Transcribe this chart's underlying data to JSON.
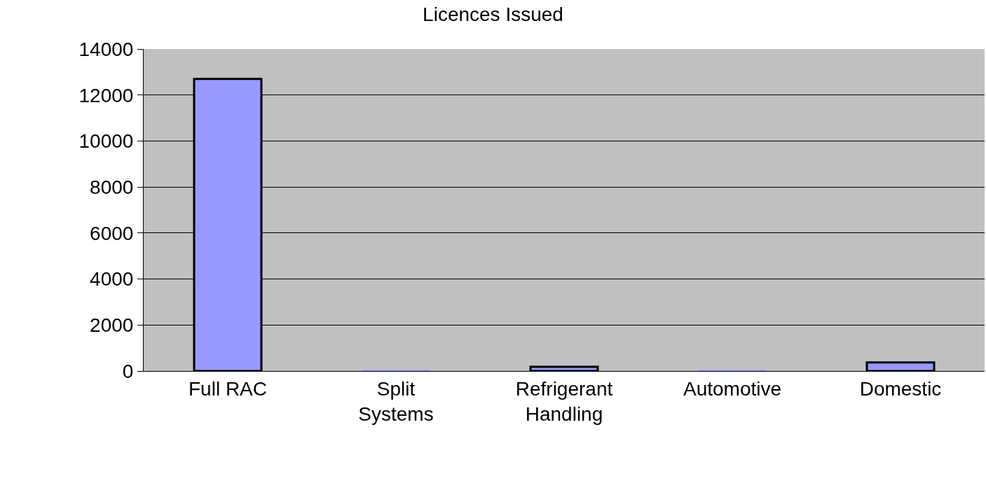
{
  "chart_data": {
    "type": "bar",
    "title": "Licences Issued",
    "categories": [
      "Full RAC",
      "Split Systems",
      "Refrigerant Handling",
      "Automotive",
      "Domestic"
    ],
    "values": [
      12700,
      0,
      180,
      0,
      370
    ],
    "color": "#9999ff",
    "ylim": [
      0,
      14000
    ],
    "yticks": [
      0,
      2000,
      4000,
      6000,
      8000,
      10000,
      12000,
      14000
    ],
    "grid": "y",
    "legend": false
  }
}
